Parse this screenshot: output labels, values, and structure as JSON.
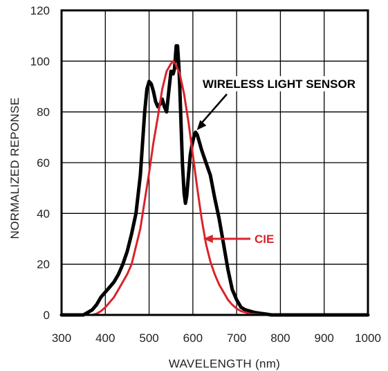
{
  "chart_data": {
    "type": "line",
    "title": "",
    "xlabel": "WAVELENGTH (nm)",
    "ylabel": "NORMALIZED REPONSE",
    "xlim": [
      300,
      1000
    ],
    "ylim": [
      0,
      120
    ],
    "xticks": [
      "300",
      "400",
      "500",
      "600",
      "700",
      "800",
      "900",
      "1000"
    ],
    "yticks": [
      "0",
      "20",
      "40",
      "60",
      "80",
      "100",
      "120"
    ],
    "grid": true,
    "series": [
      {
        "name": "WIRELESS LIGHT SENSOR",
        "color": "#000000",
        "x": [
          300,
          350,
          360,
          370,
          380,
          390,
          400,
          410,
          420,
          430,
          440,
          450,
          460,
          470,
          480,
          490,
          495,
          500,
          505,
          510,
          515,
          520,
          525,
          530,
          535,
          540,
          545,
          550,
          555,
          558,
          562,
          565,
          568,
          570,
          573,
          576,
          580,
          583,
          586,
          590,
          594,
          598,
          602,
          606,
          610,
          615,
          620,
          630,
          640,
          650,
          660,
          670,
          680,
          690,
          700,
          710,
          720,
          740,
          760,
          780,
          800,
          1000
        ],
        "y": [
          0,
          0,
          1,
          2,
          4,
          7,
          9,
          11,
          13,
          16,
          20,
          25,
          32,
          40,
          55,
          80,
          89,
          92,
          91,
          88,
          84,
          82,
          83,
          85,
          82,
          80,
          88,
          96,
          95,
          97,
          106,
          106,
          98,
          90,
          75,
          60,
          48,
          44,
          47,
          55,
          63,
          67,
          70,
          72,
          71,
          68,
          65,
          60,
          55,
          46,
          38,
          28,
          18,
          10,
          6,
          3,
          2,
          1,
          0.5,
          0,
          0,
          0
        ]
      },
      {
        "name": "CIE",
        "color": "#d9232b",
        "x": [
          300,
          370,
          380,
          390,
          400,
          410,
          420,
          430,
          440,
          450,
          460,
          470,
          480,
          490,
          500,
          510,
          520,
          530,
          540,
          550,
          555,
          560,
          570,
          580,
          590,
          600,
          610,
          620,
          630,
          640,
          650,
          660,
          670,
          680,
          690,
          700,
          710,
          720,
          730,
          740,
          760,
          1000
        ],
        "y": [
          0,
          0,
          0.5,
          1.5,
          3,
          5,
          7,
          10,
          13,
          16,
          20,
          27,
          34,
          45,
          56,
          68,
          78,
          89,
          96,
          99,
          100,
          99,
          95,
          87,
          76,
          63,
          50,
          38,
          28,
          21,
          16,
          12,
          9,
          6,
          4,
          2.5,
          1.5,
          1,
          0.5,
          0.3,
          0,
          0
        ]
      }
    ],
    "annotations": [
      {
        "text": "WIRELESS LIGHT SENSOR",
        "series": 0,
        "point": [
          606,
          72
        ]
      },
      {
        "text": "CIE",
        "series": 1,
        "point": [
          622,
          30
        ]
      }
    ],
    "legend": "none"
  }
}
